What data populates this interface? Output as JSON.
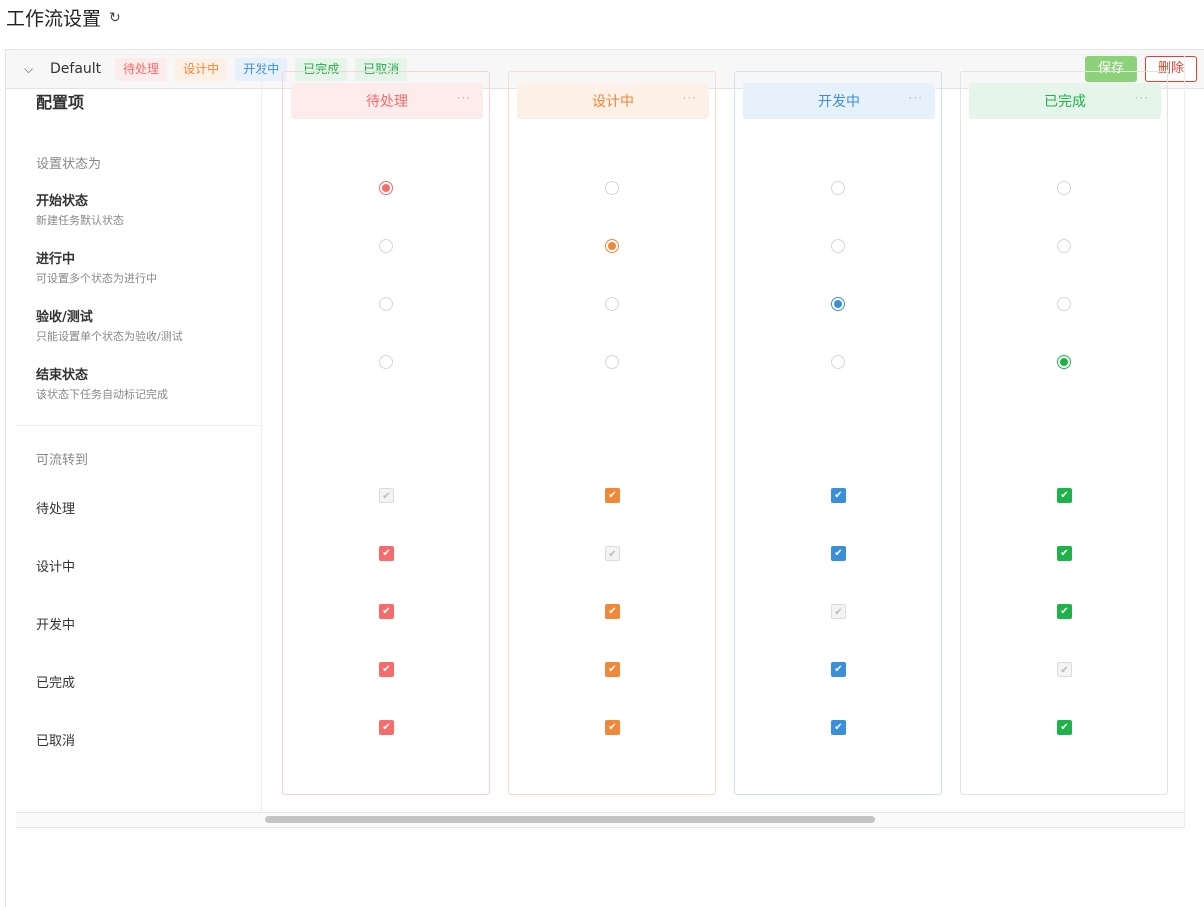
{
  "page": {
    "title": "工作流设置"
  },
  "workflow": {
    "name": "Default",
    "tags": [
      {
        "label": "待处理",
        "color": "#f56c6c",
        "bg": "#fdecec"
      },
      {
        "label": "设计中",
        "color": "#f0883a",
        "bg": "#fdf0e6"
      },
      {
        "label": "开发中",
        "color": "#3b8fd9",
        "bg": "#e7f1fb"
      },
      {
        "label": "已完成",
        "color": "#27a94a",
        "bg": "#e6f5e9"
      },
      {
        "label": "已取消",
        "color": "#27a94a",
        "bg": "#e6f5e9"
      }
    ],
    "save_label": "保存",
    "delete_label": "删除"
  },
  "config": {
    "title": "配置项",
    "set_status_label": "设置状态为",
    "options": [
      {
        "title": "开始状态",
        "desc": "新建任务默认状态"
      },
      {
        "title": "进行中",
        "desc": "可设置多个状态为进行中"
      },
      {
        "title": "验收/测试",
        "desc": "只能设置单个状态为验收/测试"
      },
      {
        "title": "结束状态",
        "desc": "该状态下任务自动标记完成"
      }
    ],
    "transition_label": "可流转到",
    "targets": [
      "待处理",
      "设计中",
      "开发中",
      "已完成",
      "已取消"
    ]
  },
  "columns": [
    {
      "name": "待处理",
      "color": "#f56c6c",
      "head_bg": "#fdecec",
      "border": "#f7d3d3",
      "selected": 0,
      "checks": [
        "disabled",
        "on",
        "on",
        "on",
        "on"
      ]
    },
    {
      "name": "设计中",
      "color": "#f0883a",
      "head_bg": "#fdf0e6",
      "border": "#f6ddcb",
      "selected": 1,
      "checks": [
        "on",
        "disabled",
        "on",
        "on",
        "on"
      ]
    },
    {
      "name": "开发中",
      "color": "#3b8fd9",
      "head_bg": "#e7f1fb",
      "border": "#cfe2f3",
      "selected": 2,
      "checks": [
        "on",
        "on",
        "disabled",
        "on",
        "on"
      ]
    },
    {
      "name": "已完成",
      "color": "#1db34a",
      "head_bg": "#e6f5e9",
      "border": "#e3e3e3",
      "selected": 3,
      "checks": [
        "on",
        "on",
        "on",
        "disabled",
        "on"
      ]
    }
  ],
  "icons": {
    "refresh": "refresh-icon",
    "chevron": "chevron-down-icon",
    "more": "more-icon",
    "check": "check-icon"
  }
}
